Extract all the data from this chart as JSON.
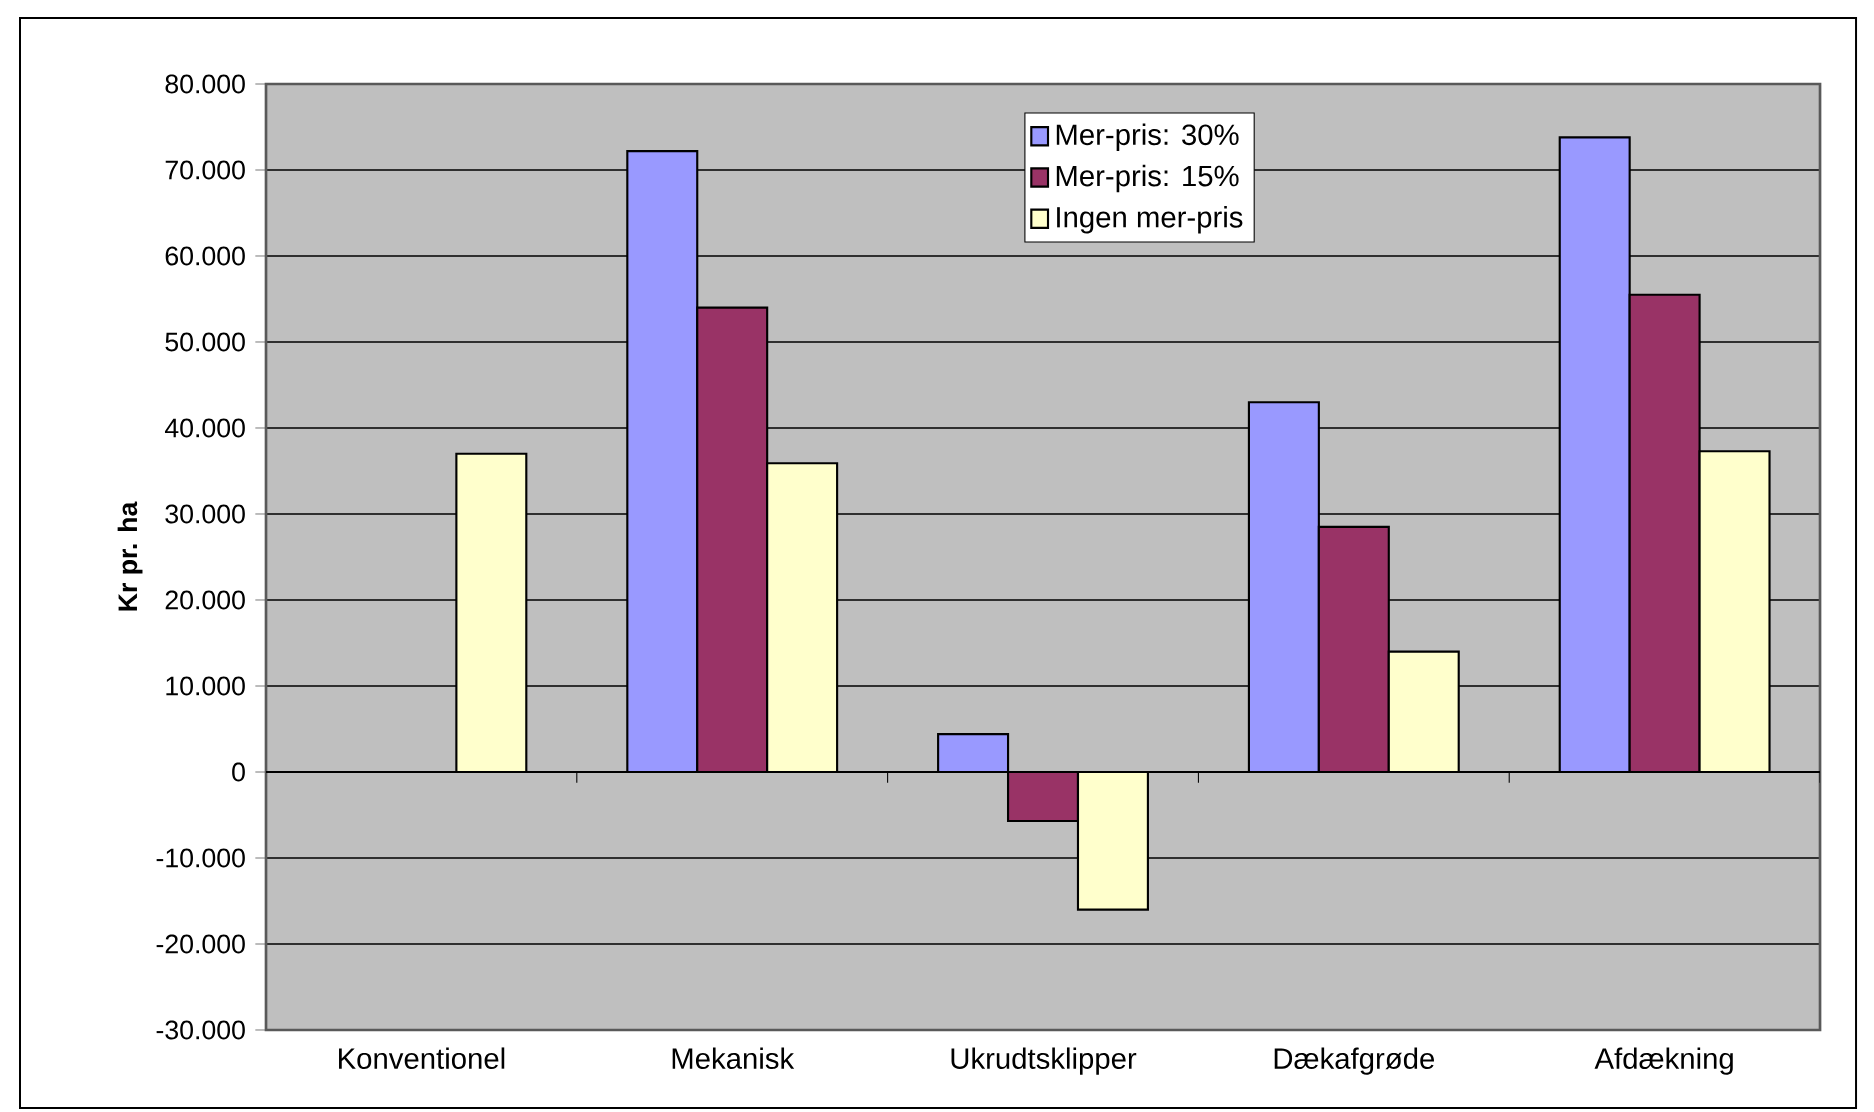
{
  "chart_data": {
    "type": "bar",
    "ylabel": "Kr pr. ha",
    "categories": [
      "Konventionel",
      "Mekanisk",
      "Ukrudtsklipper",
      "Dækafgrøde",
      "Afdækning"
    ],
    "series": [
      {
        "name": "Mer-pris: 30%",
        "color": "#9999ff",
        "values": [
          null,
          72200,
          4400,
          43000,
          73800
        ]
      },
      {
        "name": "Mer-pris: 15%",
        "color": "#993366",
        "values": [
          null,
          54000,
          -5700,
          28500,
          55500
        ]
      },
      {
        "name": "Ingen mer-pris",
        "color": "#ffffcc",
        "values": [
          37000,
          35900,
          -16000,
          14000,
          37300
        ]
      }
    ],
    "ylim": [
      -30000,
      80000
    ],
    "yticks": [
      {
        "value": -30000,
        "label": "-30.000"
      },
      {
        "value": -20000,
        "label": "-20.000"
      },
      {
        "value": -10000,
        "label": "-10.000"
      },
      0,
      {
        "value": 10000,
        "label": "10.000"
      },
      {
        "value": 20000,
        "label": "20.000"
      },
      {
        "value": 30000,
        "label": "30.000"
      },
      {
        "value": 40000,
        "label": "40.000"
      },
      {
        "value": 50000,
        "label": "50.000"
      },
      {
        "value": 60000,
        "label": "60.000"
      },
      {
        "value": 70000,
        "label": "70.000"
      },
      {
        "value": 80000,
        "label": "80.000"
      }
    ],
    "grid": "y",
    "legend": "top"
  }
}
